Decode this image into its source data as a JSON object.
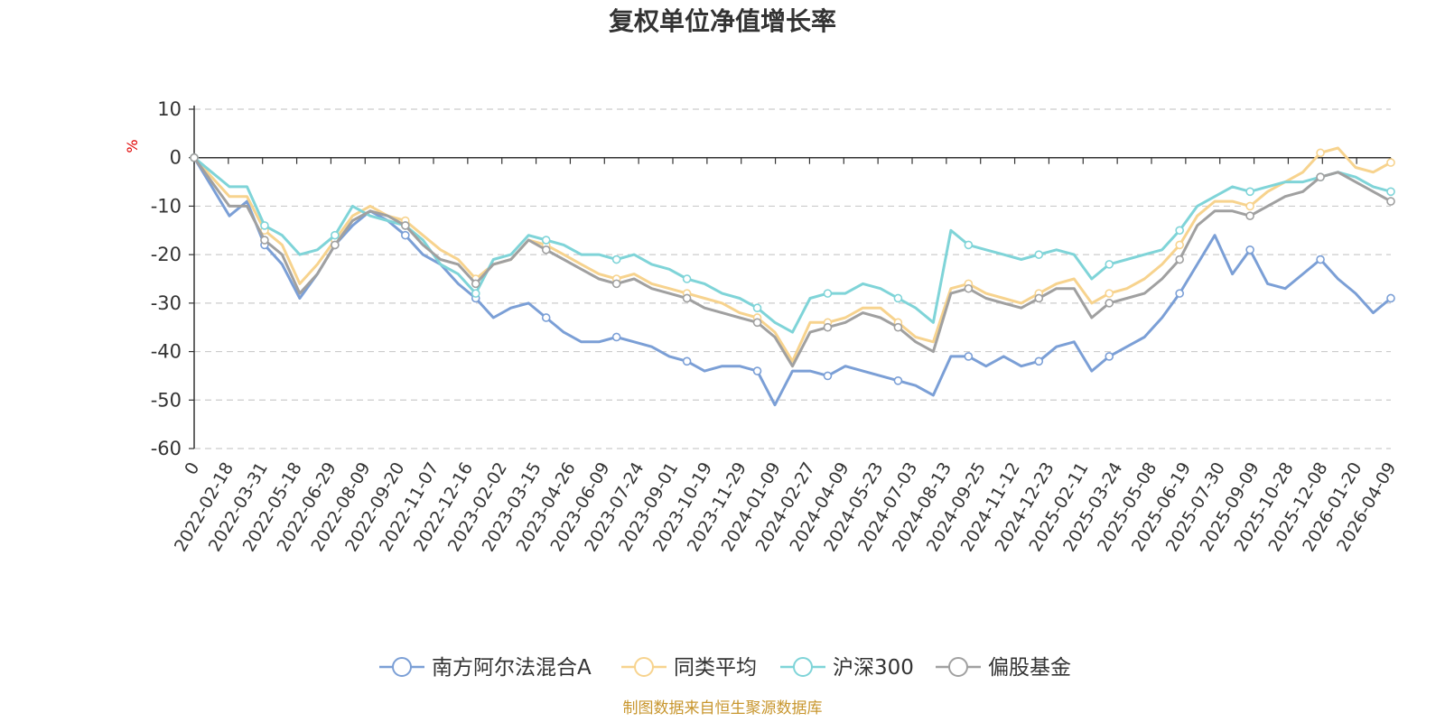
{
  "chart_data": {
    "type": "line",
    "title": "复权单位净值增长率",
    "ylabel": "%",
    "xlabel": "",
    "ylim": [
      -60,
      10
    ],
    "yticks": [
      10,
      0,
      -10,
      -20,
      -30,
      -40,
      -50,
      -60
    ],
    "grid": true,
    "legend_position": "bottom",
    "source": "制图数据来自恒生聚源数据库",
    "x_ticks": [
      "0",
      "2022-02-18",
      "2022-03-31",
      "2022-05-18",
      "2022-06-29",
      "2022-08-09",
      "2022-09-20",
      "2022-11-07",
      "2022-12-16",
      "2023-02-02",
      "2023-03-15",
      "2023-04-26",
      "2023-06-09",
      "2023-07-24",
      "2023-09-01",
      "2023-10-19",
      "2023-11-29",
      "2024-01-09",
      "2024-02-27",
      "2024-04-09",
      "2024-05-23",
      "2024-07-03",
      "2024-08-13",
      "2024-09-25",
      "2024-11-12",
      "2024-12-23",
      "2025-02-11",
      "2025-03-24",
      "2025-05-08",
      "2025-06-19",
      "2025-07-30",
      "2025-09-09",
      "2025-10-28",
      "2025-12-08",
      "2026-01-20",
      "2026-04-09"
    ],
    "series": [
      {
        "name": "南方阿尔法混合A",
        "color": "#7b9fd6",
        "values": [
          0,
          -6,
          -12,
          -9,
          -18,
          -22,
          -29,
          -24,
          -18,
          -14,
          -11,
          -13,
          -16,
          -20,
          -22,
          -26,
          -29,
          -33,
          -31,
          -30,
          -33,
          -36,
          -38,
          -38,
          -37,
          -38,
          -39,
          -41,
          -42,
          -44,
          -43,
          -43,
          -44,
          -51,
          -44,
          -44,
          -45,
          -43,
          -44,
          -45,
          -46,
          -47,
          -49,
          -41,
          -41,
          -43,
          -41,
          -43,
          -42,
          -39,
          -38,
          -44,
          -41,
          -39,
          -37,
          -33,
          -28,
          -22,
          -16,
          -24,
          -19,
          -26,
          -27,
          -24,
          -21,
          -25,
          -28,
          -32,
          -29
        ]
      },
      {
        "name": "同类平均",
        "color": "#f7d38e",
        "values": [
          0,
          -4,
          -8,
          -8,
          -15,
          -18,
          -26,
          -22,
          -17,
          -12,
          -10,
          -12,
          -13,
          -16,
          -19,
          -21,
          -25,
          -22,
          -21,
          -17,
          -18,
          -20,
          -22,
          -24,
          -25,
          -24,
          -26,
          -27,
          -28,
          -29,
          -30,
          -32,
          -33,
          -36,
          -42,
          -34,
          -34,
          -33,
          -31,
          -31,
          -34,
          -37,
          -38,
          -27,
          -26,
          -28,
          -29,
          -30,
          -28,
          -26,
          -25,
          -30,
          -28,
          -27,
          -25,
          -22,
          -18,
          -12,
          -9,
          -9,
          -10,
          -7,
          -5,
          -3,
          1,
          2,
          -2,
          -3,
          -1
        ]
      },
      {
        "name": "沪深300",
        "color": "#7fd4d8",
        "values": [
          0,
          -3,
          -6,
          -6,
          -14,
          -16,
          -20,
          -19,
          -16,
          -10,
          -12,
          -13,
          -14,
          -17,
          -22,
          -24,
          -28,
          -21,
          -20,
          -16,
          -17,
          -18,
          -20,
          -20,
          -21,
          -20,
          -22,
          -23,
          -25,
          -26,
          -28,
          -29,
          -31,
          -34,
          -36,
          -29,
          -28,
          -28,
          -26,
          -27,
          -29,
          -31,
          -34,
          -15,
          -18,
          -19,
          -20,
          -21,
          -20,
          -19,
          -20,
          -25,
          -22,
          -21,
          -20,
          -19,
          -15,
          -10,
          -8,
          -6,
          -7,
          -6,
          -5,
          -5,
          -4,
          -3,
          -4,
          -6,
          -7
        ]
      },
      {
        "name": "偏股基金",
        "color": "#a0a0a0",
        "values": [
          0,
          -5,
          -10,
          -10,
          -17,
          -20,
          -28,
          -24,
          -18,
          -13,
          -11,
          -12,
          -14,
          -18,
          -21,
          -22,
          -26,
          -22,
          -21,
          -17,
          -19,
          -21,
          -23,
          -25,
          -26,
          -25,
          -27,
          -28,
          -29,
          -31,
          -32,
          -33,
          -34,
          -37,
          -43,
          -36,
          -35,
          -34,
          -32,
          -33,
          -35,
          -38,
          -40,
          -28,
          -27,
          -29,
          -30,
          -31,
          -29,
          -27,
          -27,
          -33,
          -30,
          -29,
          -28,
          -25,
          -21,
          -14,
          -11,
          -11,
          -12,
          -10,
          -8,
          -7,
          -4,
          -3,
          -5,
          -7,
          -9
        ]
      }
    ]
  }
}
